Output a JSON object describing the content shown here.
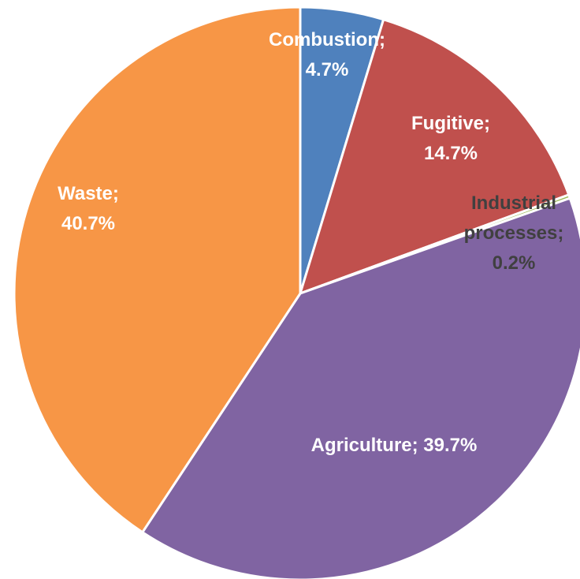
{
  "chart_data": {
    "type": "pie",
    "categories": [
      "Combustion",
      "Fugitive",
      "Industrial processes",
      "Agriculture",
      "Waste"
    ],
    "values": [
      4.7,
      14.7,
      0.2,
      39.7,
      40.7
    ],
    "value_labels": [
      "Combustion; 4.7%",
      "Fugitive; 14.7%",
      "Industrial processes; 0.2%",
      "Agriculture; 39.7%",
      "Waste; 40.7%"
    ],
    "colors": [
      "#4f81bd",
      "#c0504d",
      "#9bbb59",
      "#8064a2",
      "#f79646"
    ]
  }
}
